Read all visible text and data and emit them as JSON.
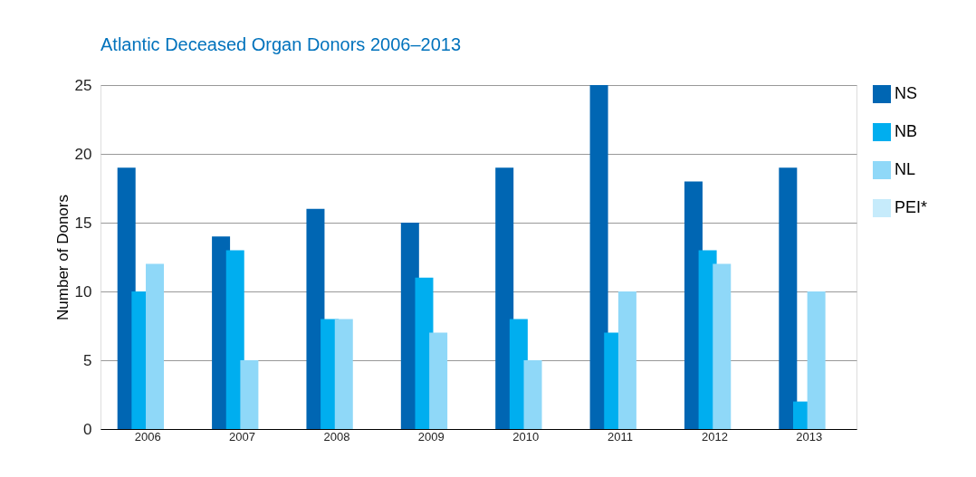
{
  "chart_data": {
    "type": "bar",
    "title": "Atlantic Deceased Organ Donors 2006–2013",
    "ylabel": "Number of Donors",
    "categories": [
      "2006",
      "2007",
      "2008",
      "2009",
      "2010",
      "2011",
      "2012",
      "2013"
    ],
    "series": [
      {
        "name": "NS",
        "color": "#0066b3",
        "values": [
          19,
          14,
          16,
          15,
          19,
          25,
          18,
          19
        ]
      },
      {
        "name": "NB",
        "color": "#00aeef",
        "values": [
          10,
          13,
          8,
          11,
          8,
          7,
          13,
          2
        ]
      },
      {
        "name": "NL",
        "color": "#8fd8f8",
        "values": [
          12,
          5,
          8,
          7,
          5,
          10,
          12,
          10
        ]
      },
      {
        "name": "PEI*",
        "color": "#c6ebfb",
        "values": [
          0,
          0,
          0,
          0,
          0,
          0,
          0,
          0
        ]
      }
    ],
    "ylim": [
      0,
      25
    ],
    "yticks": [
      0,
      5,
      10,
      15,
      20,
      25
    ],
    "grid": "y",
    "legend": "right"
  }
}
